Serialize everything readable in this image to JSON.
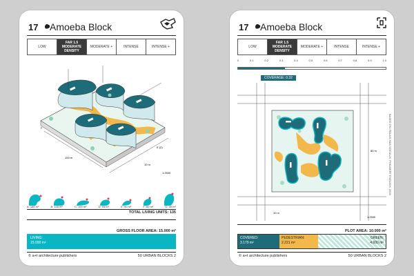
{
  "left_card": {
    "number": "17",
    "title": "Amoeba Block",
    "tabs": [
      {
        "label": "LOW"
      },
      {
        "label": "FAR 1.5 MODERATE DENSITY"
      },
      {
        "label": "MODERATE +"
      },
      {
        "label": "INTENSE"
      },
      {
        "label": "INTENSE +"
      }
    ],
    "dim_labels": {
      "width": "100 m",
      "depth": "10 m",
      "scale": "1:2500",
      "e": "E (2)",
      "f": "F"
    },
    "units": [
      {
        "label": "A: 185 m²"
      },
      {
        "label": "B: 105 m²"
      },
      {
        "label": "C: 100 m²"
      },
      {
        "label": "D: 95 m²"
      },
      {
        "label": "E: 90 m²"
      },
      {
        "label": "F: 60 m²"
      },
      {
        "label": "G: 40 m²"
      }
    ],
    "total_units": "TOTAL LIVING UNITS: 135",
    "gross_floor_area": "GROSS FLOOR AREA: 15.000 m²",
    "living_label": "LIVING:",
    "living_value": "15.000 m²",
    "copyright": "© a+t architecture publishers",
    "series": "50 URBAN BLOCKS 2"
  },
  "right_card": {
    "number": "17",
    "title": "Amoeba Block",
    "tabs": [
      {
        "label": "LOW"
      },
      {
        "label": "FAR 1.5 MODERATE DENSITY"
      },
      {
        "label": "MODERATE +"
      },
      {
        "label": "INTENSE"
      },
      {
        "label": "INTENSE +"
      }
    ],
    "coverage_ticks": [
      "0",
      "0.1",
      "0.2",
      "0.3",
      "0.4",
      "0.5",
      "0.6",
      "0.7",
      "0.8",
      "0.9",
      "1.0"
    ],
    "coverage_label": "COVERAGE: 0.32",
    "dim_labels": {
      "width": "10 m",
      "side": "80 m",
      "scale": "1:2500"
    },
    "side_credit": "BASED ON: PALAIS HAS SOCIAUX. PHILIBERT ENGLISH. 2016",
    "plot_area": "PLOT AREA: 10.000 m²",
    "covered_label": "COVERED:",
    "covered_value": "3.179 m²",
    "pedestrian_label": "PEDESTRIAN:",
    "pedestrian_value": "2.221 m²",
    "green_label": "GREEN:",
    "green_value": "4.600 m²",
    "copyright": "© a+t architecture publishers",
    "series": "50 URBAN BLOCKS 2"
  },
  "colors": {
    "teal": "#0bb6c4",
    "dark_teal": "#1e6b7a",
    "yellow": "#f2b84b",
    "green_hatch": "#bfe7d9"
  }
}
